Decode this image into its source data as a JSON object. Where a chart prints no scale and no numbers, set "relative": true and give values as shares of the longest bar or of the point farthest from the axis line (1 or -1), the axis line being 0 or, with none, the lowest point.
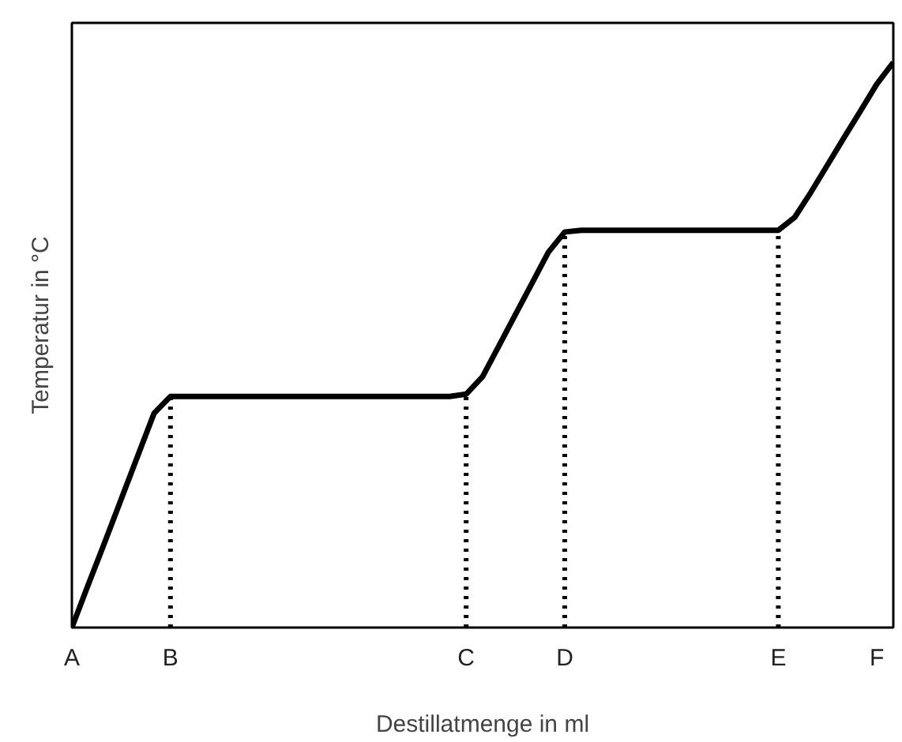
{
  "chart_data": {
    "type": "line",
    "relative": true,
    "xlabel": "Destillatmenge in ml",
    "ylabel": "Temperatur in °C",
    "categories": [
      "A",
      null,
      null,
      null,
      null,
      null,
      "B",
      null,
      null,
      null,
      null,
      null,
      null,
      null,
      null,
      null,
      null,
      null,
      null,
      null,
      null,
      null,
      null,
      null,
      "C",
      null,
      null,
      null,
      null,
      null,
      "D",
      null,
      null,
      null,
      null,
      null,
      null,
      null,
      null,
      null,
      null,
      null,
      null,
      "E",
      null,
      null,
      null,
      null,
      null,
      "F",
      null
    ],
    "series": [
      {
        "color": "#000000",
        "values": [
          0,
          0.076,
          0.151,
          0.227,
          0.303,
          0.379,
          0.409,
          0.409,
          0.409,
          0.409,
          0.409,
          0.409,
          0.409,
          0.409,
          0.409,
          0.409,
          0.409,
          0.409,
          0.409,
          0.409,
          0.409,
          0.409,
          0.409,
          0.409,
          0.413,
          0.444,
          0.499,
          0.554,
          0.609,
          0.664,
          0.7,
          0.703,
          0.703,
          0.703,
          0.703,
          0.703,
          0.703,
          0.703,
          0.703,
          0.703,
          0.703,
          0.703,
          0.703,
          0.703,
          0.726,
          0.771,
          0.819,
          0.867,
          0.914,
          0.962,
          1
        ]
      }
    ],
    "ref_lines": [
      {
        "axis": "x",
        "value": "B",
        "line_style": "dotted",
        "color": "#000000"
      },
      {
        "axis": "x",
        "value": "C",
        "line_style": "dotted",
        "color": "#000000"
      },
      {
        "axis": "x",
        "value": "D",
        "line_style": "dotted",
        "color": "#000000"
      },
      {
        "axis": "x",
        "value": "E",
        "line_style": "dotted",
        "color": "#000000"
      }
    ],
    "grid": false,
    "marker": "none",
    "line_style": "solid"
  }
}
